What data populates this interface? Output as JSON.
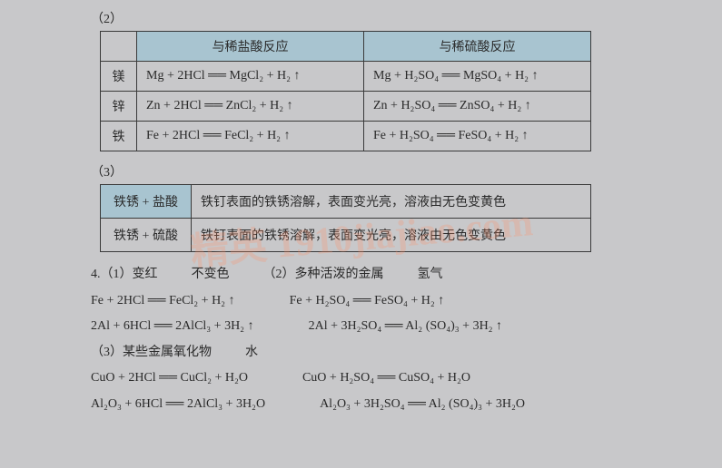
{
  "watermark": "精英 1910jiajiao.com",
  "section2": {
    "label": "（2）",
    "headers": {
      "col1": "与稀盐酸反应",
      "col2": "与稀硫酸反应"
    },
    "rows": [
      {
        "metal": "镁",
        "hcl": "Mg + 2HCl ══ MgCl₂ + H₂ ↑",
        "h2so4": "Mg + H₂SO₄ ══ MgSO₄ + H₂ ↑"
      },
      {
        "metal": "锌",
        "hcl": "Zn + 2HCl ══ ZnCl₂ + H₂ ↑",
        "h2so4": "Zn + H₂SO₄ ══ ZnSO₄ + H₂ ↑"
      },
      {
        "metal": "铁",
        "hcl": "Fe + 2HCl ══ FeCl₂ +  H₂ ↑",
        "h2so4": "Fe + H₂SO₄ ══ FeSO₄ + H₂ ↑"
      }
    ],
    "colors": {
      "header_bg": "#a8c4d0",
      "border": "#3a3a3a"
    }
  },
  "section3": {
    "label": "（3）",
    "rows": [
      {
        "label": "铁锈 + 盐酸",
        "desc": "铁钉表面的铁锈溶解，表面变光亮，溶液由无色变黄色"
      },
      {
        "label": "铁锈 + 硫酸",
        "desc": "铁钉表面的铁锈溶解，表面变光亮，溶液由无色变黄色"
      }
    ]
  },
  "q4": {
    "line1_prefix": "4.（1）变红",
    "line1_mid": "不变色",
    "line1_part2": "（2）多种活泼的金属",
    "line1_end": "氢气",
    "eq_pair1": {
      "left": "Fe + 2HCl ══ FeCl₂ + H₂ ↑",
      "right": "Fe + H₂SO₄ ══ FeSO₄ + H₂ ↑"
    },
    "eq_pair2": {
      "left": "2Al + 6HCl ══ 2AlCl₃ + 3H₂ ↑",
      "right": "2Al + 3H₂SO₄ ══ Al₂ (SO₄)₃ + 3H₂ ↑"
    },
    "line3": "（3）某些金属氧化物",
    "line3_end": "水",
    "eq_pair3": {
      "left": "CuO + 2HCl ══ CuCl₂ + H₂O",
      "right": "CuO + H₂SO₄ ══ CuSO₄ + H₂O"
    },
    "eq_pair4": {
      "left": "Al₂O₃ + 6HCl ══ 2AlCl₃ + 3H₂O",
      "right": "Al₂O₃ + 3H₂SO₄ ══ Al₂ (SO₄)₃ + 3H₂O"
    }
  }
}
